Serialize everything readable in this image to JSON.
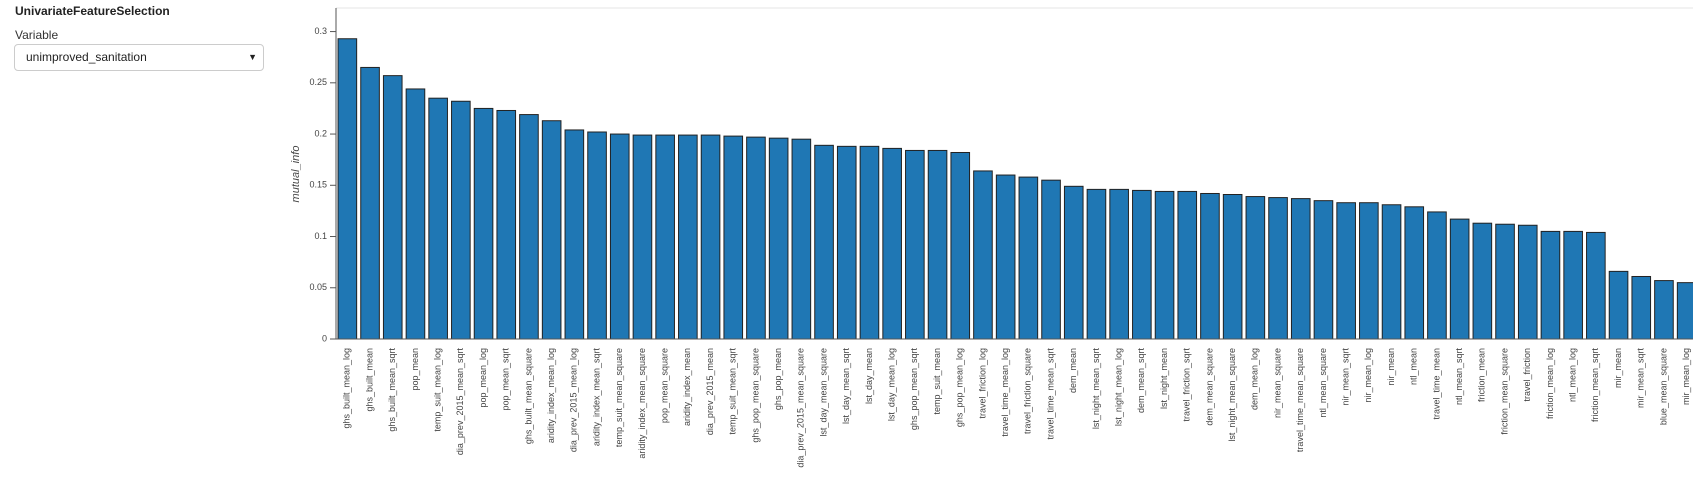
{
  "panel": {
    "title": "UnivariateFeatureSelection",
    "variable_label": "Variable",
    "variable_value": "unimproved_sanitation"
  },
  "chart_data": {
    "type": "bar",
    "y_label": "mutual_info",
    "color": "#1f77b4",
    "categories": [
      "ghs_built_mean_log",
      "ghs_built_mean",
      "ghs_built_mean_sqrt",
      "pop_mean",
      "temp_suit_mean_log",
      "dia_prev_2015_mean_sqrt",
      "pop_mean_log",
      "pop_mean_sqrt",
      "ghs_built_mean_square",
      "aridity_index_mean_log",
      "dia_prev_2015_mean_log",
      "aridity_index_mean_sqrt",
      "temp_suit_mean_square",
      "aridity_index_mean_square",
      "pop_mean_square",
      "aridity_index_mean",
      "dia_prev_2015_mean",
      "temp_suit_mean_sqrt",
      "ghs_pop_mean_square",
      "ghs_pop_mean",
      "dia_prev_2015_mean_square",
      "lst_day_mean_square",
      "lst_day_mean_sqrt",
      "lst_day_mean",
      "lst_day_mean_log",
      "ghs_pop_mean_sqrt",
      "temp_suit_mean",
      "ghs_pop_mean_log",
      "travel_friction_log",
      "travel_time_mean_log",
      "travel_friction_square",
      "travel_time_mean_sqrt",
      "dem_mean",
      "lst_night_mean_sqrt",
      "lst_night_mean_log",
      "dem_mean_sqrt",
      "lst_night_mean",
      "travel_friction_sqrt",
      "dem_mean_square",
      "lst_night_mean_square",
      "dem_mean_log",
      "nir_mean_square",
      "travel_time_mean_square",
      "ntl_mean_square",
      "nir_mean_sqrt",
      "nir_mean_log",
      "nir_mean",
      "ntl_mean",
      "travel_time_mean",
      "ntl_mean_sqrt",
      "friction_mean",
      "friction_mean_square",
      "travel_friction",
      "friction_mean_log",
      "ntl_mean_log",
      "friction_mean_sqrt",
      "mir_mean",
      "mir_mean_sqrt",
      "blue_mean_square",
      "mir_mean_log"
    ],
    "values": [
      0.293,
      0.265,
      0.257,
      0.244,
      0.235,
      0.232,
      0.225,
      0.223,
      0.219,
      0.213,
      0.204,
      0.202,
      0.2,
      0.199,
      0.199,
      0.199,
      0.199,
      0.198,
      0.197,
      0.196,
      0.195,
      0.189,
      0.188,
      0.188,
      0.186,
      0.184,
      0.184,
      0.182,
      0.164,
      0.16,
      0.158,
      0.155,
      0.149,
      0.146,
      0.146,
      0.145,
      0.144,
      0.144,
      0.142,
      0.141,
      0.139,
      0.138,
      0.137,
      0.135,
      0.133,
      0.133,
      0.131,
      0.129,
      0.124,
      0.117,
      0.113,
      0.112,
      0.111,
      0.105,
      0.105,
      0.104,
      0.066,
      0.061,
      0.057,
      0.055
    ],
    "ylim": [
      0,
      0.323
    ],
    "yticks": [
      0,
      0.05,
      0.1,
      0.15,
      0.2,
      0.25,
      0.3
    ]
  }
}
